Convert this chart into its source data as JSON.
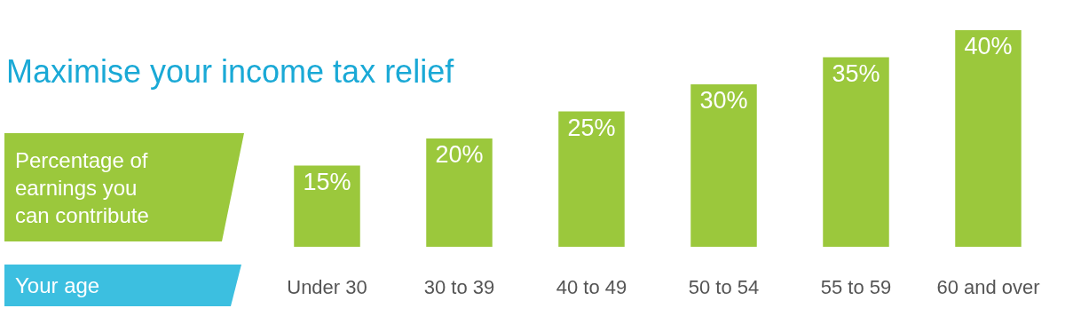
{
  "chart_data": {
    "type": "bar",
    "title": "Maximise your income tax relief",
    "annotations": [
      "Percentage of earnings you can contribute",
      "Your age"
    ],
    "categories": [
      "Under 30",
      "30 to 39",
      "40 to 49",
      "50 to 54",
      "55 to 59",
      "60 and over"
    ],
    "values": [
      15,
      20,
      25,
      30,
      35,
      40
    ],
    "value_labels": [
      "15%",
      "20%",
      "25%",
      "30%",
      "35%",
      "40%"
    ],
    "color": "#9bc83c"
  }
}
